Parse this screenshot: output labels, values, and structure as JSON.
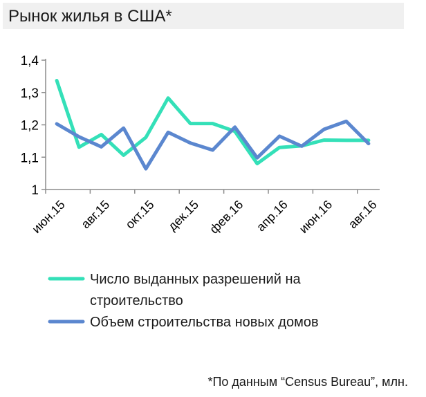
{
  "chart_data": {
    "type": "line",
    "title": "Рынок жилья в США*",
    "xlabel": "",
    "ylabel": "",
    "ylim": [
      1,
      1.4
    ],
    "yticks": [
      "1,4",
      "1,3",
      "1,2",
      "1,1",
      "1"
    ],
    "ytick_values": [
      1.4,
      1.3,
      1.2,
      1.1,
      1.0
    ],
    "x": [
      "июн.15",
      "июл.15",
      "авг.15",
      "сен.15",
      "окт.15",
      "ноя.15",
      "дек.15",
      "янв.16",
      "фев.16",
      "мар.16",
      "апр.16",
      "май.16",
      "июн.16",
      "июл.16",
      "авг.16"
    ],
    "xtick_labels": [
      "июн.15",
      "авг.15",
      "окт.15",
      "дек.15",
      "фев.16",
      "апр.16",
      "июн.16",
      "авг.16"
    ],
    "xtick_positions": [
      0,
      2,
      4,
      6,
      8,
      10,
      12,
      14
    ],
    "grid": false,
    "legend": "bottom",
    "series": [
      {
        "name": "Число выданных разрешений на строительство",
        "legend_lines": [
          "Число выданных разрешений на",
          "строительство"
        ],
        "color": "#34e0b8",
        "values": [
          1.337,
          1.131,
          1.17,
          1.106,
          1.161,
          1.283,
          1.204,
          1.204,
          1.18,
          1.08,
          1.13,
          1.135,
          1.153,
          1.152,
          1.152
        ]
      },
      {
        "name": "Объем строительства новых домов",
        "legend_lines": [
          "Объем строительства новых домов"
        ],
        "color": "#5b87cf",
        "values": [
          1.203,
          1.163,
          1.132,
          1.19,
          1.064,
          1.177,
          1.144,
          1.122,
          1.193,
          1.098,
          1.165,
          1.134,
          1.186,
          1.211,
          1.142
        ]
      }
    ]
  },
  "footnote": "*По данным “Census Bureau”, млн."
}
